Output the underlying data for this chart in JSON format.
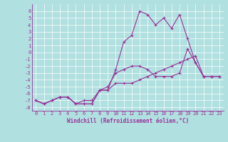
{
  "xlabel": "Windchill (Refroidissement éolien,°C)",
  "x": [
    0,
    1,
    2,
    3,
    4,
    5,
    6,
    7,
    8,
    9,
    10,
    11,
    12,
    13,
    14,
    15,
    16,
    17,
    18,
    19,
    20,
    21,
    22,
    23
  ],
  "line1": [
    -7.0,
    -7.5,
    -7.0,
    -6.5,
    -6.5,
    -7.5,
    -7.5,
    -7.5,
    -5.5,
    -5.5,
    -2.5,
    1.5,
    2.5,
    6.0,
    5.5,
    4.0,
    5.0,
    3.5,
    5.5,
    2.0,
    -1.5,
    -3.5,
    -3.5,
    -3.5
  ],
  "line2": [
    -7.0,
    -7.5,
    -7.0,
    -6.5,
    -6.5,
    -7.5,
    -7.0,
    -7.0,
    -5.5,
    -5.0,
    -3.0,
    -2.5,
    -2.0,
    -2.0,
    -2.5,
    -3.5,
    -3.5,
    -3.5,
    -3.0,
    0.5,
    -1.5,
    -3.5,
    -3.5,
    -3.5
  ],
  "line3": [
    -7.0,
    -7.5,
    -7.0,
    -6.5,
    -6.5,
    -7.5,
    -7.5,
    -7.5,
    -5.5,
    -5.5,
    -4.5,
    -4.5,
    -4.5,
    -4.0,
    -3.5,
    -3.0,
    -2.5,
    -2.0,
    -1.5,
    -1.0,
    -0.5,
    -3.5,
    -3.5,
    -3.5
  ],
  "line_color": "#993399",
  "bg_color": "#b0e0e0",
  "grid_color": "#ffffff",
  "ylim": [
    -8.5,
    7.0
  ],
  "xlim": [
    -0.5,
    23.5
  ],
  "yticks": [
    6,
    5,
    4,
    3,
    2,
    1,
    0,
    -1,
    -2,
    -3,
    -4,
    -5,
    -6,
    -7,
    -8
  ],
  "xticks": [
    0,
    1,
    2,
    3,
    4,
    5,
    6,
    7,
    8,
    9,
    10,
    11,
    12,
    13,
    14,
    15,
    16,
    17,
    18,
    19,
    20,
    21,
    22,
    23
  ],
  "marker": "+",
  "markersize": 3,
  "linewidth": 0.8,
  "tick_fontsize": 5.0,
  "xlabel_fontsize": 5.5
}
